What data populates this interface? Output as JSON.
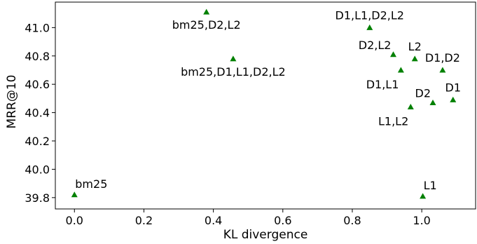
{
  "chart_data": {
    "type": "scatter",
    "title": "",
    "xlabel": "KL divergence",
    "ylabel": "MRR@10",
    "xlim": [
      -0.055,
      1.155
    ],
    "ylim": [
      39.72,
      41.18
    ],
    "xticks": [
      0.0,
      0.2,
      0.4,
      0.6,
      0.8,
      1.0
    ],
    "xtick_labels": [
      "0.0",
      "0.2",
      "0.4",
      "0.6",
      "0.8",
      "1.0"
    ],
    "yticks": [
      39.8,
      40.0,
      40.2,
      40.4,
      40.6,
      40.8,
      41.0
    ],
    "ytick_labels": [
      "39.8",
      "40.0",
      "40.2",
      "40.4",
      "40.6",
      "40.8",
      "41.0"
    ],
    "grid": false,
    "legend": false,
    "marker": "triangle",
    "marker_color": "#008000",
    "points": [
      {
        "label": "bm25",
        "x": 0.0,
        "y": 39.82,
        "label_pos": "above-right"
      },
      {
        "label": "bm25,D2,L2",
        "x": 0.38,
        "y": 41.11,
        "label_pos": "below"
      },
      {
        "label": "bm25,D1,L1,D2,L2",
        "x": 0.457,
        "y": 40.78,
        "label_pos": "below"
      },
      {
        "label": "D1,L1,D2,L2",
        "x": 0.85,
        "y": 41.0,
        "label_pos": "above"
      },
      {
        "label": "D2,L2",
        "x": 0.918,
        "y": 40.81,
        "label_pos": "above-left"
      },
      {
        "label": "L2",
        "x": 0.98,
        "y": 40.78,
        "label_pos": "above"
      },
      {
        "label": "D1,L1",
        "x": 0.94,
        "y": 40.7,
        "label_pos": "below-left"
      },
      {
        "label": "D1,D2",
        "x": 1.06,
        "y": 40.7,
        "label_pos": "above"
      },
      {
        "label": "D2",
        "x": 1.032,
        "y": 40.47,
        "label_pos": "above-left"
      },
      {
        "label": "D1",
        "x": 1.09,
        "y": 40.49,
        "label_pos": "above"
      },
      {
        "label": "L1,L2",
        "x": 0.968,
        "y": 40.44,
        "label_pos": "below-left"
      },
      {
        "label": "L1",
        "x": 1.003,
        "y": 39.81,
        "label_pos": "above-right"
      }
    ]
  }
}
